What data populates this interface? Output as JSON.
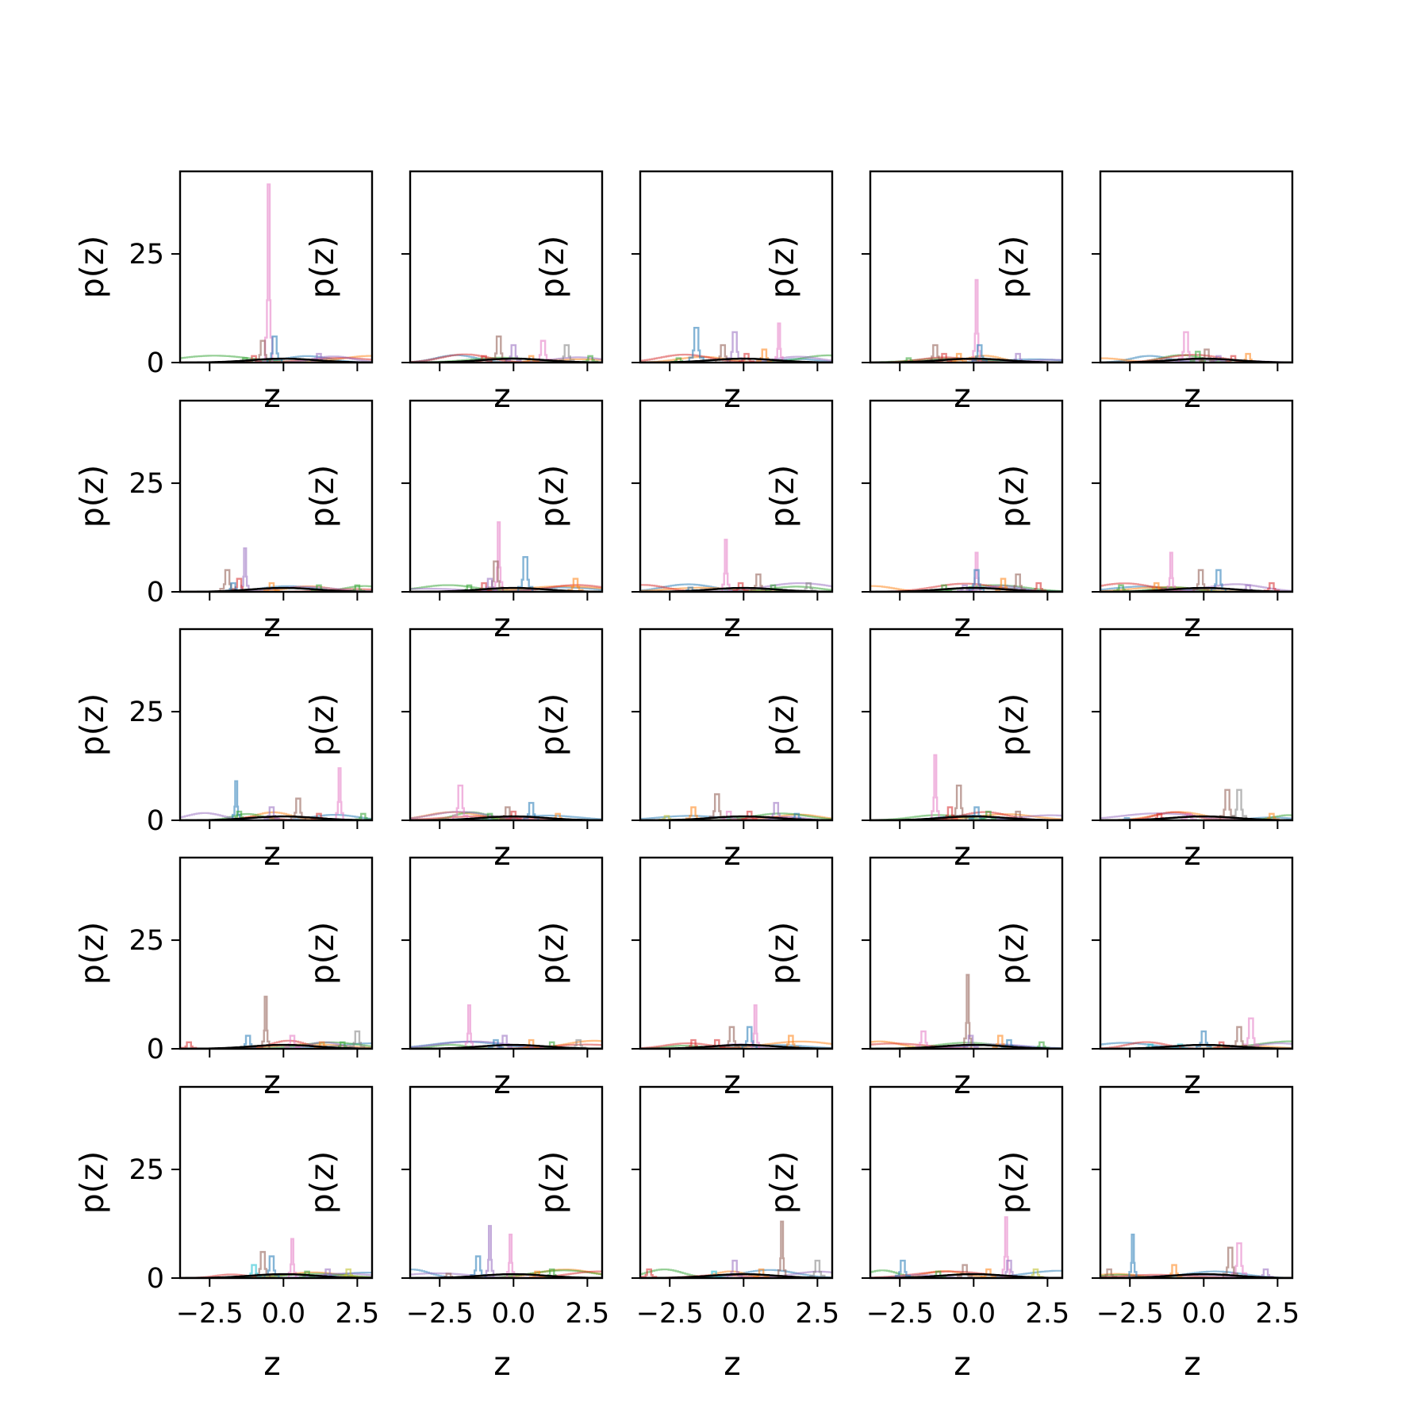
{
  "chart_data": {
    "type": "step-histogram-grid",
    "rows": 5,
    "cols": 5,
    "xlabel": "z",
    "ylabel": "p(z)",
    "xlim": [
      -3.5,
      3.0
    ],
    "ylim": [
      0,
      44
    ],
    "xticks": [
      -2.5,
      0.0,
      2.5
    ],
    "xtick_labels": [
      "−2.5",
      "0.0",
      "2.5"
    ],
    "yticks": [
      0,
      25
    ],
    "ytick_labels": [
      "0",
      "25"
    ],
    "palette": [
      "#1f77b4",
      "#ff7f0e",
      "#2ca02c",
      "#d62728",
      "#9467bd",
      "#8c564b",
      "#e377c2",
      "#7f7f7f",
      "#bcbd22",
      "#17becf"
    ],
    "black_curve": "#000000",
    "panels": [
      {
        "peaks": [
          {
            "x": -0.5,
            "h": 41,
            "c": 6
          },
          {
            "x": -0.3,
            "h": 6,
            "c": 0
          },
          {
            "x": -0.7,
            "h": 5,
            "c": 5
          },
          {
            "x": 1.2,
            "h": 2,
            "c": 4
          },
          {
            "x": -1.3,
            "h": 1,
            "c": 2
          },
          {
            "x": -1.0,
            "h": 1.5,
            "c": 3
          }
        ]
      },
      {
        "peaks": [
          {
            "x": -0.5,
            "h": 6,
            "c": 5
          },
          {
            "x": 0.0,
            "h": 4,
            "c": 4
          },
          {
            "x": 1.0,
            "h": 5,
            "c": 6
          },
          {
            "x": 1.8,
            "h": 4,
            "c": 7
          },
          {
            "x": -1.0,
            "h": 1.5,
            "c": 3
          },
          {
            "x": 0.6,
            "h": 1.5,
            "c": 1
          },
          {
            "x": 2.6,
            "h": 1.5,
            "c": 2
          }
        ]
      },
      {
        "peaks": [
          {
            "x": -1.6,
            "h": 8,
            "c": 0
          },
          {
            "x": -0.3,
            "h": 7,
            "c": 4
          },
          {
            "x": 1.2,
            "h": 9,
            "c": 6
          },
          {
            "x": -0.7,
            "h": 4,
            "c": 5
          },
          {
            "x": 0.7,
            "h": 3,
            "c": 1
          },
          {
            "x": 0.1,
            "h": 2,
            "c": 3
          },
          {
            "x": -2.2,
            "h": 1,
            "c": 2
          }
        ]
      },
      {
        "peaks": [
          {
            "x": 0.1,
            "h": 19,
            "c": 6
          },
          {
            "x": 0.2,
            "h": 4,
            "c": 0
          },
          {
            "x": -1.3,
            "h": 4,
            "c": 5
          },
          {
            "x": -0.5,
            "h": 2,
            "c": 1
          },
          {
            "x": 1.5,
            "h": 2,
            "c": 4
          },
          {
            "x": -1.0,
            "h": 2,
            "c": 3
          },
          {
            "x": -2.2,
            "h": 1,
            "c": 2
          }
        ]
      },
      {
        "peaks": [
          {
            "x": -0.6,
            "h": 7,
            "c": 6
          },
          {
            "x": -0.2,
            "h": 2.5,
            "c": 2
          },
          {
            "x": 0.1,
            "h": 3,
            "c": 5
          },
          {
            "x": 1.5,
            "h": 2,
            "c": 1
          },
          {
            "x": 1.0,
            "h": 1.5,
            "c": 3
          },
          {
            "x": 0.5,
            "h": 1.5,
            "c": 4
          }
        ]
      },
      {
        "peaks": [
          {
            "x": -1.3,
            "h": 10,
            "c": 4
          },
          {
            "x": -1.9,
            "h": 5,
            "c": 5
          },
          {
            "x": -1.5,
            "h": 3,
            "c": 3
          },
          {
            "x": -0.4,
            "h": 2,
            "c": 1
          },
          {
            "x": 1.2,
            "h": 1.5,
            "c": 2
          },
          {
            "x": 2.5,
            "h": 1.5,
            "c": 2
          },
          {
            "x": -1.7,
            "h": 2,
            "c": 0
          }
        ]
      },
      {
        "peaks": [
          {
            "x": -0.5,
            "h": 16,
            "c": 6
          },
          {
            "x": -0.6,
            "h": 7,
            "c": 5
          },
          {
            "x": 0.4,
            "h": 8,
            "c": 0
          },
          {
            "x": 2.1,
            "h": 3,
            "c": 1
          },
          {
            "x": -1.0,
            "h": 2,
            "c": 3
          },
          {
            "x": -1.5,
            "h": 1.5,
            "c": 2
          },
          {
            "x": -0.8,
            "h": 3,
            "c": 4
          }
        ]
      },
      {
        "peaks": [
          {
            "x": -0.6,
            "h": 12,
            "c": 6
          },
          {
            "x": 0.5,
            "h": 4,
            "c": 5
          },
          {
            "x": 2.2,
            "h": 2,
            "c": 7
          },
          {
            "x": -1.8,
            "h": 1,
            "c": 0
          },
          {
            "x": -0.1,
            "h": 2,
            "c": 3
          },
          {
            "x": 1.0,
            "h": 1.5,
            "c": 2
          }
        ]
      },
      {
        "peaks": [
          {
            "x": 0.1,
            "h": 9,
            "c": 6
          },
          {
            "x": 0.1,
            "h": 5,
            "c": 0
          },
          {
            "x": 1.5,
            "h": 4,
            "c": 5
          },
          {
            "x": 2.2,
            "h": 2,
            "c": 3
          },
          {
            "x": 1.0,
            "h": 3,
            "c": 1
          },
          {
            "x": -1.0,
            "h": 1.5,
            "c": 2
          },
          {
            "x": -0.3,
            "h": 1.5,
            "c": 4
          }
        ]
      },
      {
        "peaks": [
          {
            "x": -1.1,
            "h": 9,
            "c": 6
          },
          {
            "x": 0.5,
            "h": 5,
            "c": 0
          },
          {
            "x": -0.1,
            "h": 5,
            "c": 5
          },
          {
            "x": 2.3,
            "h": 2,
            "c": 3
          },
          {
            "x": 1.5,
            "h": 1.5,
            "c": 4
          },
          {
            "x": -2.8,
            "h": 1.5,
            "c": 2
          },
          {
            "x": -1.6,
            "h": 2,
            "c": 1
          }
        ]
      },
      {
        "peaks": [
          {
            "x": -1.6,
            "h": 9,
            "c": 0
          },
          {
            "x": 1.9,
            "h": 12,
            "c": 6
          },
          {
            "x": 0.5,
            "h": 5,
            "c": 5
          },
          {
            "x": -0.4,
            "h": 3,
            "c": 4
          },
          {
            "x": -1.5,
            "h": 2,
            "c": 2
          },
          {
            "x": 1.2,
            "h": 1.5,
            "c": 3
          },
          {
            "x": 2.7,
            "h": 1.5,
            "c": 2
          }
        ]
      },
      {
        "peaks": [
          {
            "x": -1.8,
            "h": 8,
            "c": 6
          },
          {
            "x": 0.6,
            "h": 4,
            "c": 0
          },
          {
            "x": -0.2,
            "h": 3,
            "c": 5
          },
          {
            "x": 1.5,
            "h": 1.5,
            "c": 1
          },
          {
            "x": -0.8,
            "h": 1.5,
            "c": 2
          },
          {
            "x": 0.0,
            "h": 2,
            "c": 3
          }
        ]
      },
      {
        "peaks": [
          {
            "x": -0.9,
            "h": 6,
            "c": 5
          },
          {
            "x": -1.7,
            "h": 3,
            "c": 1
          },
          {
            "x": 1.1,
            "h": 4,
            "c": 4
          },
          {
            "x": 0.2,
            "h": 2,
            "c": 3
          },
          {
            "x": 1.8,
            "h": 1.5,
            "c": 0
          },
          {
            "x": -2.6,
            "h": 1,
            "c": 8
          },
          {
            "x": -0.5,
            "h": 2,
            "c": 6
          }
        ]
      },
      {
        "peaks": [
          {
            "x": -1.3,
            "h": 15,
            "c": 6
          },
          {
            "x": -0.5,
            "h": 8,
            "c": 5
          },
          {
            "x": 0.1,
            "h": 3,
            "c": 0
          },
          {
            "x": 1.5,
            "h": 2,
            "c": 5
          },
          {
            "x": -0.8,
            "h": 3,
            "c": 3
          },
          {
            "x": 0.5,
            "h": 2,
            "c": 2
          }
        ]
      },
      {
        "peaks": [
          {
            "x": 0.8,
            "h": 7,
            "c": 5
          },
          {
            "x": 1.2,
            "h": 7,
            "c": 7
          },
          {
            "x": -1.5,
            "h": 1.5,
            "c": 3
          },
          {
            "x": -0.5,
            "h": 1.5,
            "c": 6
          },
          {
            "x": 2.3,
            "h": 1.5,
            "c": 1
          },
          {
            "x": -2.6,
            "h": 0.5,
            "c": 0
          }
        ]
      },
      {
        "peaks": [
          {
            "x": -0.6,
            "h": 12,
            "c": 5
          },
          {
            "x": 2.5,
            "h": 4,
            "c": 7
          },
          {
            "x": -1.2,
            "h": 3,
            "c": 0
          },
          {
            "x": 0.3,
            "h": 3,
            "c": 6
          },
          {
            "x": -3.2,
            "h": 1.5,
            "c": 3
          },
          {
            "x": 1.3,
            "h": 1.5,
            "c": 1
          },
          {
            "x": 2.0,
            "h": 1.5,
            "c": 2
          }
        ]
      },
      {
        "peaks": [
          {
            "x": -1.5,
            "h": 10,
            "c": 6
          },
          {
            "x": -0.3,
            "h": 3,
            "c": 4
          },
          {
            "x": 0.6,
            "h": 2,
            "c": 1
          },
          {
            "x": 2.2,
            "h": 2,
            "c": 7
          },
          {
            "x": 1.3,
            "h": 1.5,
            "c": 2
          },
          {
            "x": -0.6,
            "h": 2,
            "c": 0
          }
        ]
      },
      {
        "peaks": [
          {
            "x": 0.4,
            "h": 10,
            "c": 6
          },
          {
            "x": 0.2,
            "h": 5,
            "c": 0
          },
          {
            "x": -0.4,
            "h": 5,
            "c": 5
          },
          {
            "x": 1.6,
            "h": 3,
            "c": 1
          },
          {
            "x": -1.7,
            "h": 2,
            "c": 3
          },
          {
            "x": -0.9,
            "h": 2,
            "c": 3
          }
        ]
      },
      {
        "peaks": [
          {
            "x": -0.2,
            "h": 17,
            "c": 5
          },
          {
            "x": -1.7,
            "h": 4,
            "c": 6
          },
          {
            "x": 0.9,
            "h": 3,
            "c": 1
          },
          {
            "x": -0.1,
            "h": 3,
            "c": 4
          },
          {
            "x": 2.3,
            "h": 1.5,
            "c": 2
          },
          {
            "x": 1.2,
            "h": 2,
            "c": 0
          }
        ]
      },
      {
        "peaks": [
          {
            "x": 1.6,
            "h": 7,
            "c": 6
          },
          {
            "x": 0.0,
            "h": 4,
            "c": 0
          },
          {
            "x": 1.2,
            "h": 5,
            "c": 5
          },
          {
            "x": -1.8,
            "h": 1,
            "c": 9
          },
          {
            "x": -0.8,
            "h": 1,
            "c": 9
          },
          {
            "x": 0.6,
            "h": 1.5,
            "c": 3
          }
        ]
      },
      {
        "peaks": [
          {
            "x": 0.3,
            "h": 9,
            "c": 6
          },
          {
            "x": -0.7,
            "h": 6,
            "c": 5
          },
          {
            "x": -0.4,
            "h": 5,
            "c": 0
          },
          {
            "x": -1.0,
            "h": 3,
            "c": 9
          },
          {
            "x": 2.2,
            "h": 2,
            "c": 8
          },
          {
            "x": 1.5,
            "h": 2,
            "c": 4
          },
          {
            "x": 0.8,
            "h": 1.5,
            "c": 2
          }
        ]
      },
      {
        "peaks": [
          {
            "x": -0.8,
            "h": 12,
            "c": 4
          },
          {
            "x": -1.2,
            "h": 5,
            "c": 0
          },
          {
            "x": -0.1,
            "h": 10,
            "c": 6
          },
          {
            "x": 1.3,
            "h": 2,
            "c": 2
          },
          {
            "x": -2.2,
            "h": 1,
            "c": 5
          },
          {
            "x": 0.8,
            "h": 1.5,
            "c": 1
          }
        ]
      },
      {
        "peaks": [
          {
            "x": 1.3,
            "h": 13,
            "c": 5
          },
          {
            "x": 2.5,
            "h": 4,
            "c": 7
          },
          {
            "x": -0.3,
            "h": 4,
            "c": 4
          },
          {
            "x": -3.2,
            "h": 2,
            "c": 3
          },
          {
            "x": 0.6,
            "h": 2,
            "c": 1
          },
          {
            "x": -1.0,
            "h": 1.5,
            "c": 9
          }
        ]
      },
      {
        "peaks": [
          {
            "x": 1.1,
            "h": 14,
            "c": 6
          },
          {
            "x": -2.4,
            "h": 4,
            "c": 0
          },
          {
            "x": -0.3,
            "h": 3,
            "c": 5
          },
          {
            "x": 1.2,
            "h": 4,
            "c": 4
          },
          {
            "x": 2.1,
            "h": 2,
            "c": 8
          },
          {
            "x": 0.5,
            "h": 2,
            "c": 1
          },
          {
            "x": -1.2,
            "h": 1.5,
            "c": 2
          }
        ]
      },
      {
        "peaks": [
          {
            "x": -2.4,
            "h": 10,
            "c": 0
          },
          {
            "x": 1.2,
            "h": 8,
            "c": 6
          },
          {
            "x": 0.9,
            "h": 7,
            "c": 5
          },
          {
            "x": -1.0,
            "h": 3,
            "c": 1
          },
          {
            "x": 2.1,
            "h": 2,
            "c": 4
          },
          {
            "x": -3.2,
            "h": 2,
            "c": 5
          }
        ]
      }
    ]
  }
}
